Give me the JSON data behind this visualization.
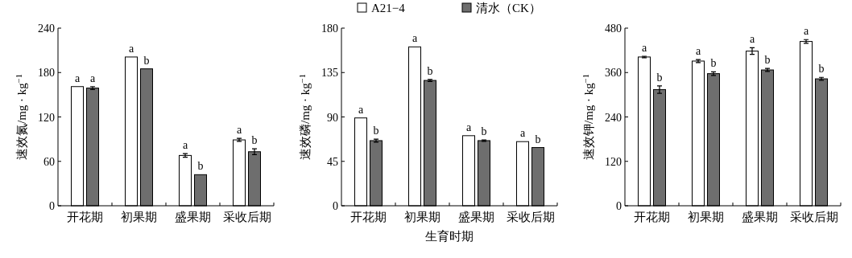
{
  "chart_data": [
    {
      "type": "bar",
      "ylabel": "速效氮/mg · kg$^{−1}$",
      "categories": [
        "开花期",
        "初果期",
        "盛果期",
        "采收后期"
      ],
      "ylim": [
        0,
        240
      ],
      "yticks": [
        0,
        60,
        120,
        180,
        240
      ],
      "series": [
        {
          "color": "#ffffff",
          "values": [
            161,
            201,
            68,
            89
          ],
          "errors": [
            null,
            null,
            2.5,
            2
          ],
          "value_labels": [
            "a",
            "a",
            "a",
            "a"
          ]
        },
        {
          "color": "#6e6e6e",
          "values": [
            159,
            185,
            42,
            73
          ],
          "errors": [
            2,
            null,
            null,
            4
          ],
          "value_labels": [
            "a",
            "b",
            "b",
            "b"
          ]
        }
      ]
    },
    {
      "type": "bar",
      "ylabel": "速效磷/mg · kg$^{−1}$",
      "xlabel": "生育时期",
      "legend": "top",
      "categories": [
        "开花期",
        "初果期",
        "盛果期",
        "采收后期"
      ],
      "ylim": [
        0,
        180
      ],
      "yticks": [
        0,
        45,
        90,
        135,
        180
      ],
      "series": [
        {
          "name": "A21−4",
          "color": "#ffffff",
          "values": [
            89,
            161,
            71,
            65
          ],
          "errors": [
            null,
            null,
            null,
            null
          ],
          "value_labels": [
            "a",
            "a",
            "a",
            "a"
          ]
        },
        {
          "name": "清水（CK）",
          "color": "#6e6e6e",
          "values": [
            66,
            127,
            66,
            59
          ],
          "errors": [
            1.5,
            1,
            0.7,
            null
          ],
          "value_labels": [
            "b",
            "b",
            "b",
            "b"
          ]
        }
      ]
    },
    {
      "type": "bar",
      "ylabel": "速效钾/mg · kg$^{−1}$",
      "categories": [
        "开花期",
        "初果期",
        "盛果期",
        "采收后期"
      ],
      "ylim": [
        0,
        480
      ],
      "yticks": [
        0,
        120,
        240,
        360,
        480
      ],
      "series": [
        {
          "color": "#ffffff",
          "values": [
            402,
            391,
            418,
            444
          ],
          "errors": [
            2,
            4,
            9,
            5
          ],
          "value_labels": [
            "a",
            "a",
            "a",
            "a"
          ]
        },
        {
          "color": "#6e6e6e",
          "values": [
            314,
            357,
            367,
            343
          ],
          "errors": [
            10,
            5,
            4,
            4
          ],
          "value_labels": [
            "b",
            "b",
            "b",
            "b"
          ]
        }
      ]
    }
  ]
}
